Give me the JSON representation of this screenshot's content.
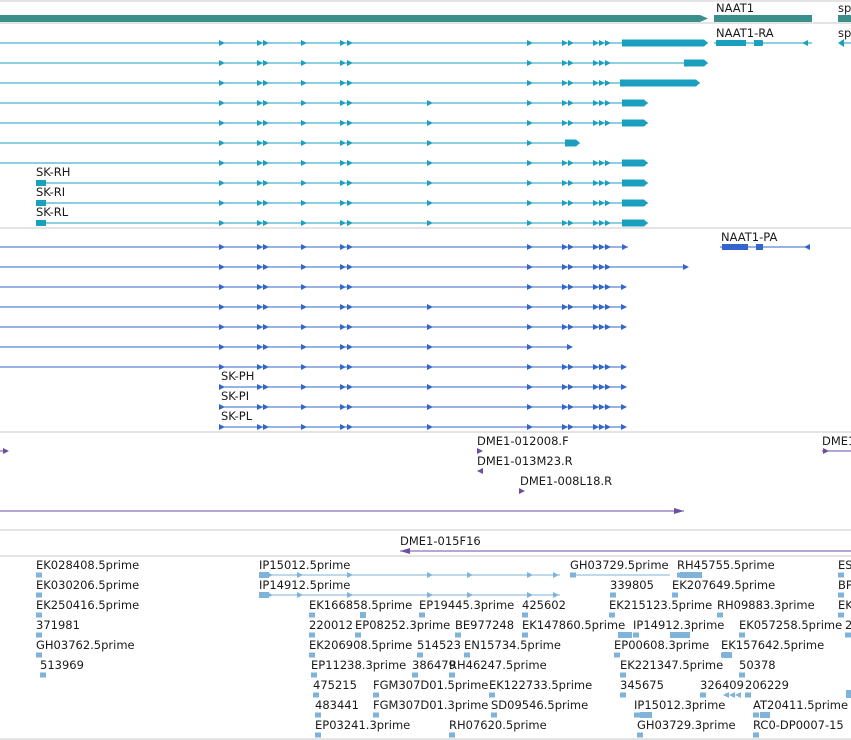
{
  "gene": {
    "label": "NAAT1",
    "neighbor_label": "sp",
    "color": "#3a8f8a"
  },
  "transcripts_ra": {
    "color": "#1a9fbf",
    "label": "NAAT1-RA",
    "neighbor_label": "sp",
    "rows": [
      {
        "label": ""
      },
      {
        "label": ""
      },
      {
        "label": ""
      },
      {
        "label": ""
      },
      {
        "label": ""
      },
      {
        "label": ""
      },
      {
        "label": ""
      },
      {
        "label": "SK-RH"
      },
      {
        "label": "SK-RI"
      },
      {
        "label": "SK-RL"
      }
    ]
  },
  "transcripts_pa": {
    "color": "#3366cc",
    "label": "NAAT1-PA",
    "rows": [
      {
        "label": ""
      },
      {
        "label": ""
      },
      {
        "label": ""
      },
      {
        "label": ""
      },
      {
        "label": ""
      },
      {
        "label": ""
      },
      {
        "label": ""
      },
      {
        "label": "SK-PH"
      },
      {
        "label": "SK-PI"
      },
      {
        "label": "SK-PL"
      }
    ]
  },
  "clones": {
    "color": "#6a4fa3",
    "items": [
      {
        "label": "DME1-012008.F"
      },
      {
        "label": "DME1-013M23.R"
      },
      {
        "label": "DME1-008L18.R"
      },
      {
        "label": "DME1-015F16"
      },
      {
        "label": "DME1"
      }
    ]
  },
  "ests": {
    "color": "#7fb3d9",
    "items": [
      {
        "label": "EK028408.5prime"
      },
      {
        "label": "EK030206.5prime"
      },
      {
        "label": "EK250416.5prime"
      },
      {
        "label": "371981"
      },
      {
        "label": "GH03762.5prime"
      },
      {
        "label": "513969"
      },
      {
        "label": "IP15012.5prime"
      },
      {
        "label": "IP14912.5prime"
      },
      {
        "label": "EK166858.5prime"
      },
      {
        "label": "EP19445.3prime"
      },
      {
        "label": "425602"
      },
      {
        "label": "220012"
      },
      {
        "label": "EP08252.3prime"
      },
      {
        "label": "BE977248"
      },
      {
        "label": "EK147860.5prime"
      },
      {
        "label": "EK206908.5prime"
      },
      {
        "label": "514523"
      },
      {
        "label": "EN15734.5prime"
      },
      {
        "label": "EP11238.3prime"
      },
      {
        "label": "386479"
      },
      {
        "label": "RH46247.5prime"
      },
      {
        "label": "475215"
      },
      {
        "label": "FGM307D01.5prime"
      },
      {
        "label": "EK122733.5prime"
      },
      {
        "label": "483441"
      },
      {
        "label": "FGM307D01.3prime"
      },
      {
        "label": "SD09546.5prime"
      },
      {
        "label": "EP03241.3prime"
      },
      {
        "label": "RH07620.5prime"
      },
      {
        "label": "GH03729.5prime"
      },
      {
        "label": "RH45755.5prime"
      },
      {
        "label": "339805"
      },
      {
        "label": "EK207649.5prime"
      },
      {
        "label": "EK215123.5prime"
      },
      {
        "label": "RH09883.3prime"
      },
      {
        "label": "IP14912.3prime"
      },
      {
        "label": "EK057258.5prime"
      },
      {
        "label": "EP00608.3prime"
      },
      {
        "label": "EK157642.5prime"
      },
      {
        "label": "EK221347.5prime"
      },
      {
        "label": "50378"
      },
      {
        "label": "345675"
      },
      {
        "label": "326409"
      },
      {
        "label": "206229"
      },
      {
        "label": "IP15012.3prime"
      },
      {
        "label": "AT20411.5prime"
      },
      {
        "label": "GH03729.3prime"
      },
      {
        "label": "RC0-DP0007-15"
      },
      {
        "label": "ES"
      },
      {
        "label": "BP"
      },
      {
        "label": "EK"
      },
      {
        "label": "2"
      }
    ]
  }
}
